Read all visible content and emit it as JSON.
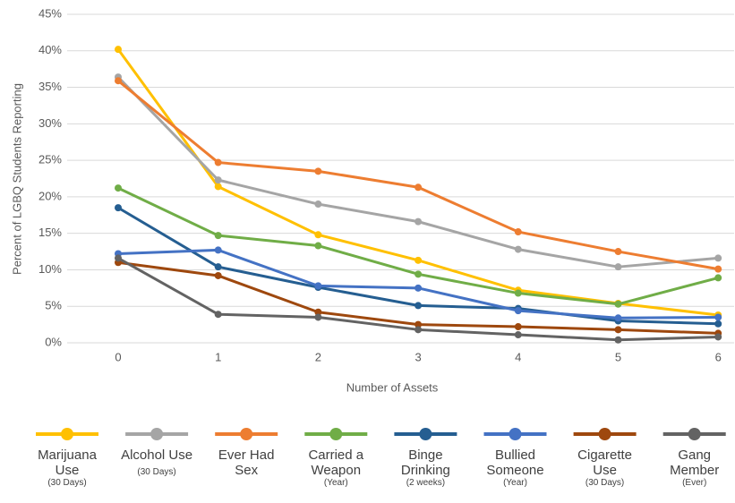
{
  "chart_data": {
    "type": "line",
    "y_label": "Percent of LGBQ Students Reporting",
    "x_label": "Number of Assets",
    "categories": [
      "0",
      "1",
      "2",
      "3",
      "4",
      "5",
      "6"
    ],
    "ylim": [
      0,
      45
    ],
    "yticks": [
      {
        "value": 0,
        "label": "0%"
      },
      {
        "value": 5,
        "label": "5%"
      },
      {
        "value": 10,
        "label": "10%"
      },
      {
        "value": 15,
        "label": "15%"
      },
      {
        "value": 20,
        "label": "20%"
      },
      {
        "value": 25,
        "label": "25%"
      },
      {
        "value": 30,
        "label": "30%"
      },
      {
        "value": 35,
        "label": "35%"
      },
      {
        "value": 40,
        "label": "40%"
      },
      {
        "value": 45,
        "label": "45%"
      }
    ],
    "grid": true,
    "series": [
      {
        "name": "Marijuana Use",
        "qualifier": "(30 Days)",
        "color": "#FFC000",
        "values": [
          40.2,
          21.4,
          14.8,
          11.3,
          7.2,
          5.4,
          3.8
        ]
      },
      {
        "name": "Alcohol Use",
        "qualifier": "(30 Days)",
        "color": "#A5A5A5",
        "values": [
          36.4,
          22.3,
          19.0,
          16.6,
          12.8,
          10.4,
          11.6
        ]
      },
      {
        "name": "Ever Had Sex",
        "color": "#ED7D31",
        "values": [
          35.9,
          24.7,
          23.5,
          21.3,
          15.2,
          12.5,
          10.1
        ]
      },
      {
        "name": "Carried a Weapon",
        "qualifier": "(Year)",
        "color": "#70AD47",
        "values": [
          21.2,
          14.7,
          13.3,
          9.4,
          6.8,
          5.3,
          8.9
        ]
      },
      {
        "name": "Binge Drinking",
        "qualifier": "(2 weeks)",
        "color": "#255E91",
        "values": [
          18.5,
          10.4,
          7.6,
          5.1,
          4.7,
          3.0,
          2.6
        ]
      },
      {
        "name": "Bullied Someone",
        "qualifier": "(Year)",
        "color": "#4472C4",
        "values": [
          12.2,
          12.7,
          7.8,
          7.5,
          4.4,
          3.4,
          3.5
        ]
      },
      {
        "name": "Cigarette Use",
        "qualifier": "(30 Days)",
        "color": "#9E480E",
        "values": [
          11.0,
          9.2,
          4.2,
          2.5,
          2.2,
          1.8,
          1.3
        ]
      },
      {
        "name": "Gang Member",
        "qualifier": "(Ever)",
        "color": "#636363",
        "values": [
          11.6,
          3.9,
          3.5,
          1.8,
          1.1,
          0.4,
          0.8
        ]
      }
    ]
  }
}
